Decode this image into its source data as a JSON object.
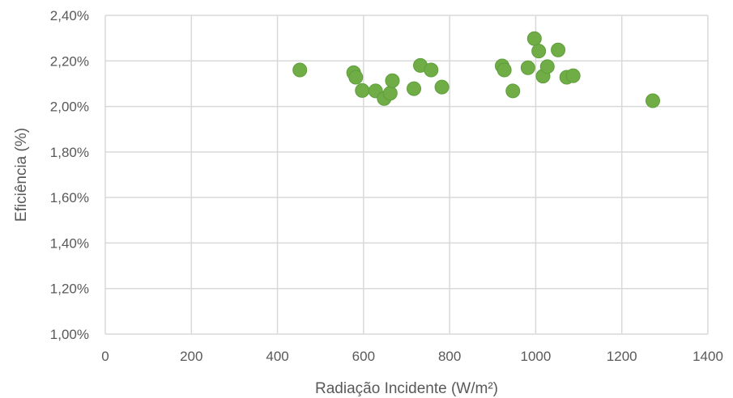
{
  "chart_data": {
    "type": "scatter",
    "title": "",
    "xlabel": "Radiação Incidente (W/m²)",
    "ylabel": "Eficiência (%)",
    "xlim": [
      0,
      1400
    ],
    "ylim": [
      1.0,
      2.4
    ],
    "x_ticks": [
      0,
      200,
      400,
      600,
      800,
      1000,
      1200,
      1400
    ],
    "x_tick_labels": [
      "0",
      "200",
      "400",
      "600",
      "800",
      "1000",
      "1200",
      "1400"
    ],
    "y_ticks": [
      1.0,
      1.2,
      1.4,
      1.6,
      1.8,
      2.0,
      2.2,
      2.4
    ],
    "y_tick_labels": [
      "1,00%",
      "1,20%",
      "1,40%",
      "1,60%",
      "1,80%",
      "2,00%",
      "2,20%",
      "2,40%"
    ],
    "grid": true,
    "legend": "none",
    "marker_color": "#70AD47",
    "marker_edge_color": "#5E9E3A",
    "grid_color": "#D9D9D9",
    "series": [
      {
        "points": [
          {
            "x": 452,
            "y": 2.16
          },
          {
            "x": 577,
            "y": 2.148
          },
          {
            "x": 582,
            "y": 2.128
          },
          {
            "x": 597,
            "y": 2.07
          },
          {
            "x": 628,
            "y": 2.068
          },
          {
            "x": 648,
            "y": 2.035
          },
          {
            "x": 662,
            "y": 2.058
          },
          {
            "x": 667,
            "y": 2.113
          },
          {
            "x": 717,
            "y": 2.078
          },
          {
            "x": 732,
            "y": 2.18
          },
          {
            "x": 757,
            "y": 2.16
          },
          {
            "x": 782,
            "y": 2.085
          },
          {
            "x": 922,
            "y": 2.178
          },
          {
            "x": 927,
            "y": 2.16
          },
          {
            "x": 947,
            "y": 2.068
          },
          {
            "x": 982,
            "y": 2.17
          },
          {
            "x": 997,
            "y": 2.298
          },
          {
            "x": 1007,
            "y": 2.243
          },
          {
            "x": 1017,
            "y": 2.133
          },
          {
            "x": 1027,
            "y": 2.175
          },
          {
            "x": 1052,
            "y": 2.248
          },
          {
            "x": 1072,
            "y": 2.128
          },
          {
            "x": 1087,
            "y": 2.135
          },
          {
            "x": 1272,
            "y": 2.025
          }
        ]
      }
    ]
  }
}
